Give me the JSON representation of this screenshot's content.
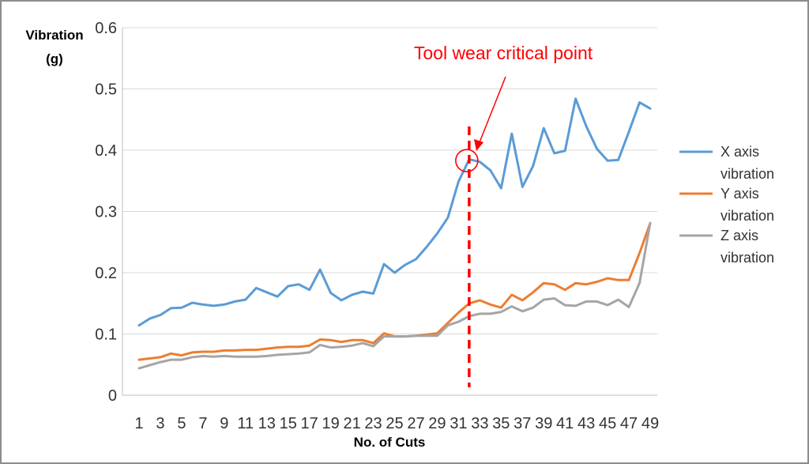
{
  "chart_data": {
    "type": "line",
    "xlabel": "No. of Cuts",
    "ylabel": "Vibration (g)",
    "ylabel_lines": [
      "Vibration",
      "(g)"
    ],
    "ylim": [
      0,
      0.6
    ],
    "yticks": [
      "0",
      "0.1",
      "0.2",
      "0.3",
      "0.4",
      "0.5",
      "0.6"
    ],
    "x": [
      1,
      2,
      3,
      4,
      5,
      6,
      7,
      8,
      9,
      10,
      11,
      12,
      13,
      14,
      15,
      16,
      17,
      18,
      19,
      20,
      21,
      22,
      23,
      24,
      25,
      26,
      27,
      28,
      29,
      30,
      31,
      32,
      33,
      34,
      35,
      36,
      37,
      38,
      39,
      40,
      41,
      42,
      43,
      44,
      45,
      46,
      47,
      48,
      49
    ],
    "xticks": [
      1,
      3,
      5,
      7,
      9,
      11,
      13,
      15,
      17,
      19,
      21,
      23,
      25,
      27,
      29,
      31,
      33,
      35,
      37,
      39,
      41,
      43,
      45,
      47,
      49
    ],
    "grid": "horizontal",
    "legend_position": "right",
    "series": [
      {
        "name": "X axis vibration",
        "name_lines": [
          "X axis",
          "vibration"
        ],
        "color": "#5b9bd5",
        "values": [
          0.114,
          0.125,
          0.131,
          0.142,
          0.143,
          0.151,
          0.148,
          0.146,
          0.148,
          0.153,
          0.156,
          0.175,
          0.168,
          0.161,
          0.178,
          0.181,
          0.172,
          0.205,
          0.167,
          0.155,
          0.164,
          0.169,
          0.166,
          0.214,
          0.2,
          0.213,
          0.222,
          0.242,
          0.264,
          0.29,
          0.349,
          0.385,
          0.381,
          0.367,
          0.338,
          0.427,
          0.34,
          0.374,
          0.436,
          0.395,
          0.399,
          0.484,
          0.439,
          0.402,
          0.383,
          0.384,
          0.43,
          0.478,
          0.468
        ]
      },
      {
        "name": "Y axis vibration",
        "name_lines": [
          "Y axis",
          "vibration"
        ],
        "color": "#ed7d31",
        "values": [
          0.058,
          0.06,
          0.062,
          0.068,
          0.065,
          0.07,
          0.071,
          0.071,
          0.073,
          0.073,
          0.074,
          0.074,
          0.076,
          0.078,
          0.079,
          0.079,
          0.081,
          0.091,
          0.09,
          0.087,
          0.09,
          0.09,
          0.085,
          0.101,
          0.096,
          0.096,
          0.097,
          0.099,
          0.101,
          0.118,
          0.135,
          0.15,
          0.155,
          0.148,
          0.143,
          0.164,
          0.155,
          0.168,
          0.183,
          0.181,
          0.172,
          0.183,
          0.181,
          0.185,
          0.191,
          0.188,
          0.188,
          0.232,
          0.281
        ]
      },
      {
        "name": "Z axis vibration",
        "name_lines": [
          "Z axis",
          "vibration"
        ],
        "color": "#a5a5a5",
        "values": [
          0.044,
          0.049,
          0.054,
          0.058,
          0.058,
          0.062,
          0.064,
          0.063,
          0.064,
          0.063,
          0.063,
          0.063,
          0.064,
          0.066,
          0.067,
          0.068,
          0.07,
          0.082,
          0.078,
          0.079,
          0.081,
          0.085,
          0.08,
          0.096,
          0.096,
          0.096,
          0.097,
          0.097,
          0.097,
          0.114,
          0.12,
          0.129,
          0.133,
          0.133,
          0.136,
          0.145,
          0.137,
          0.143,
          0.156,
          0.158,
          0.147,
          0.146,
          0.153,
          0.153,
          0.147,
          0.156,
          0.144,
          0.183,
          0.281
        ]
      }
    ],
    "annotations": [
      {
        "text": "Tool wear critical point",
        "color": "#ff0000",
        "vertical_line_at_x": 32,
        "circle_at": [
          32,
          0.383
        ]
      }
    ]
  }
}
